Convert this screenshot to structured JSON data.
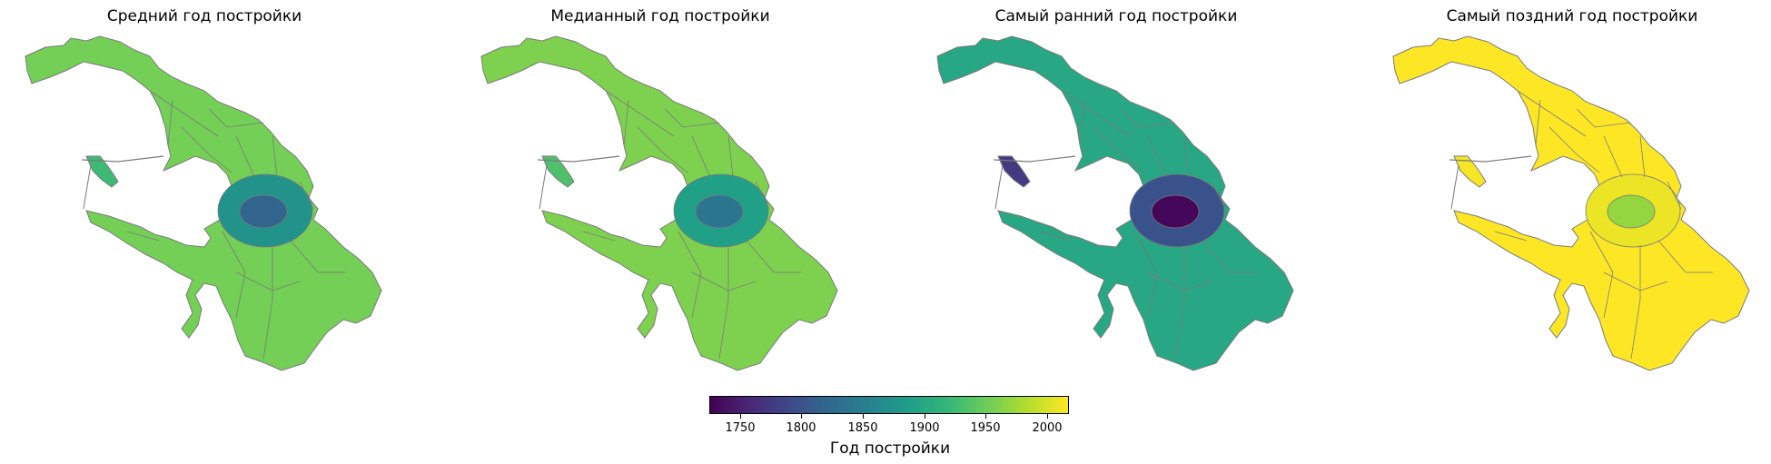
{
  "chart_data": {
    "type": "choropleth",
    "colormap": "viridis",
    "panels": [
      {
        "title": "Средний год постройки",
        "center_value": 1820,
        "inner_value": 1875,
        "outer_value": 1955,
        "island_value": 1925
      },
      {
        "title": "Медианный год постройки",
        "center_value": 1840,
        "inner_value": 1890,
        "outer_value": 1960,
        "island_value": 1935
      },
      {
        "title": "Самый ранний год постройки",
        "center_value": 1730,
        "inner_value": 1800,
        "outer_value": 1900,
        "island_value": 1775
      },
      {
        "title": "Самый поздний год постройки",
        "center_value": 1970,
        "inner_value": 2010,
        "outer_value": 2020,
        "island_value": 2015
      }
    ],
    "colorbar": {
      "label": "Год постройки",
      "range": [
        1725,
        2018
      ],
      "ticks": [
        1750,
        1800,
        1850,
        1900,
        1950,
        2000
      ]
    },
    "colors": {
      "viridis": [
        "#440154",
        "#482878",
        "#3e4989",
        "#31688e",
        "#26828e",
        "#1f9e89",
        "#35b779",
        "#6ece58",
        "#b5de2b",
        "#fde725"
      ],
      "district_border": "#7a7a7a"
    }
  }
}
